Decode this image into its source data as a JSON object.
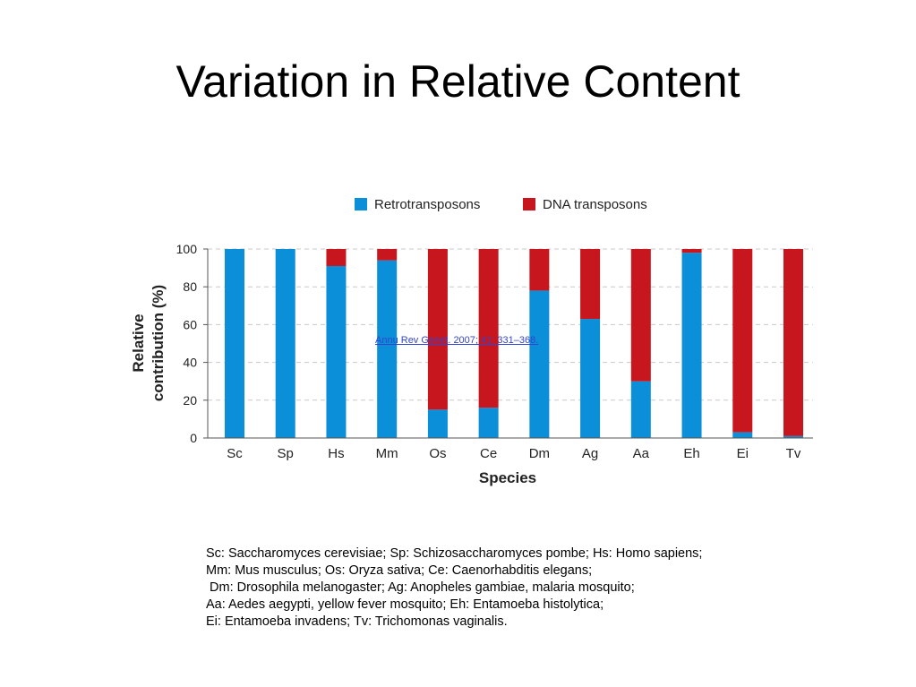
{
  "slide": {
    "title": "Variation in Relative Content",
    "citation": "Annu Rev Genet. 2007; 41: 331–368.",
    "footnote_lines": [
      "Sc: Saccharomyces cerevisiae; Sp: Schizosaccharomyces pombe; Hs: Homo sapiens;",
      "Mm: Mus musculus; Os: Oryza sativa; Ce: Caenorhabditis elegans;",
      " Dm: Drosophila melanogaster; Ag: Anopheles gambiae, malaria mosquito;",
      "Aa: Aedes aegypti, yellow fever mosquito; Eh: Entamoeba histolytica;",
      "Ei: Entamoeba invadens; Tv: Trichomonas vaginalis."
    ]
  },
  "chart_data": {
    "type": "bar",
    "stacked": true,
    "title": "",
    "xlabel": "Species",
    "ylabel_lines": [
      "Relative",
      "contribution (%)"
    ],
    "ylim": [
      0,
      100
    ],
    "yticks": [
      0,
      20,
      40,
      60,
      80,
      100
    ],
    "grid": "horizontal dashed",
    "legend_position": "top",
    "categories": [
      "Sc",
      "Sp",
      "Hs",
      "Mm",
      "Os",
      "Ce",
      "Dm",
      "Ag",
      "Aa",
      "Eh",
      "Ei",
      "Tv"
    ],
    "series": [
      {
        "name": "Retrotransposons",
        "color": "#0a8fd8",
        "values": [
          100,
          100,
          91,
          94,
          15,
          16,
          78,
          63,
          30,
          98,
          3,
          1
        ]
      },
      {
        "name": "DNA transposons",
        "color": "#c8161e",
        "values": [
          0,
          0,
          9,
          6,
          85,
          84,
          22,
          37,
          70,
          2,
          97,
          99
        ]
      }
    ]
  }
}
